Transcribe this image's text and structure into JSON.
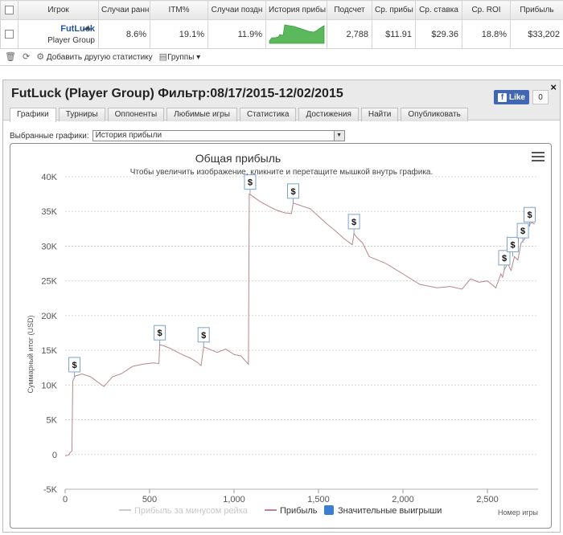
{
  "stats_table": {
    "headers": [
      "Игрок",
      "Случаи ранн",
      "ITM%",
      "Случаи поздн",
      "История прибы",
      "Подсчет",
      "Ср. прибы",
      "Ср. ставка",
      "Ср. ROI",
      "Прибыль"
    ],
    "row": {
      "player_name": "FutLuck",
      "player_group": "Player Group",
      "early": "8.6%",
      "itm": "19.1%",
      "late": "11.9%",
      "count": "2,788",
      "avg_profit": "$11.91",
      "avg_stake": "$29.36",
      "avg_roi": "18.8%",
      "profit": "$33,202"
    }
  },
  "toolbar": {
    "add_stats_label": "Добавить другую статистику",
    "groups_label": "Группы"
  },
  "report": {
    "title": "FutLuck (Player Group) Фильтр:08/17/2015-12/02/2015",
    "close_glyph": "×",
    "fb_like_label": "Like",
    "fb_like_count": "0",
    "tabs": [
      "Графики",
      "Турниры",
      "Оппоненты",
      "Любимые игры",
      "Статистика",
      "Достижения",
      "Найти",
      "Опубликовать"
    ],
    "active_tab": 0,
    "selector_label": "Выбранные графики:",
    "selector_value": "История прибыли"
  },
  "icons": {
    "trash": "trash-icon",
    "refresh": "refresh-icon",
    "add_stats": "add-stats-icon",
    "groups": "groups-icon",
    "menu": "hamburger-menu-icon",
    "player_type": "shark-icon",
    "big_win": "dollar-flag-icon"
  },
  "colors": {
    "profit_line": "#b7878a",
    "sparkline": "#4caf50",
    "rake_series": "#cccccc",
    "big_wins": "#3a7fd5",
    "player_link": "#1f56a8",
    "flag_border": "#7fa3c8"
  },
  "chart_data": {
    "type": "line",
    "title": "Общая прибыль",
    "subtitle": "Чтобы увеличить изображение, кликните и перетащите мышкой внутрь графика.",
    "xlabel": "Номер игры",
    "ylabel": "Суммарный итог (USD)",
    "xlim": [
      0,
      2800
    ],
    "ylim": [
      -5000,
      40000
    ],
    "x_ticks": [
      0,
      500,
      1000,
      1500,
      2000,
      2500
    ],
    "x_tick_labels": [
      "0",
      "500",
      "1,000",
      "1,500",
      "2,000",
      "2,500"
    ],
    "y_ticks": [
      -5000,
      0,
      5000,
      10000,
      15000,
      20000,
      25000,
      30000,
      35000,
      40000
    ],
    "y_tick_labels": [
      "-5K",
      "0",
      "5K",
      "10K",
      "15K",
      "20K",
      "25K",
      "30K",
      "35K",
      "40K"
    ],
    "grid": true,
    "legend_position": "bottom",
    "series": [
      {
        "name": "Прибыль за минусом рейка",
        "values": []
      },
      {
        "name": "Прибыль",
        "x": [
          0,
          20,
          30,
          40,
          45,
          60,
          100,
          150,
          200,
          230,
          280,
          330,
          400,
          460,
          520,
          555,
          560,
          580,
          620,
          660,
          700,
          740,
          780,
          805,
          820,
          860,
          900,
          950,
          1000,
          1040,
          1085,
          1090,
          1110,
          1150,
          1200,
          1250,
          1300,
          1340,
          1350,
          1400,
          1450,
          1500,
          1550,
          1600,
          1650,
          1700,
          1710,
          1730,
          1760,
          1800,
          1900,
          2000,
          2100,
          2200,
          2280,
          2350,
          2400,
          2450,
          2500,
          2550,
          2580,
          2590,
          2600,
          2620,
          2640,
          2660,
          2680,
          2700,
          2720,
          2740,
          2760,
          2780
        ],
        "values": [
          -200,
          -100,
          300,
          500,
          10600,
          11300,
          11600,
          11200,
          10300,
          9800,
          11200,
          11600,
          12700,
          13000,
          13200,
          13100,
          15800,
          15700,
          15300,
          14800,
          14300,
          13900,
          13300,
          12800,
          15500,
          15100,
          14700,
          15200,
          14400,
          14200,
          13000,
          37500,
          37200,
          36500,
          35800,
          35200,
          34800,
          34700,
          36200,
          35800,
          35400,
          34300,
          33200,
          32200,
          31100,
          30200,
          31800,
          31200,
          30500,
          28500,
          27500,
          26000,
          24500,
          24000,
          24200,
          23800,
          25300,
          24800,
          25000,
          24000,
          26000,
          25500,
          26600,
          27500,
          26500,
          28500,
          28000,
          30500,
          31000,
          32800,
          33400,
          33200
        ]
      },
      {
        "name": "Значительные выигрыши",
        "values": []
      }
    ],
    "big_win_markers": [
      {
        "x": 55,
        "y": 11200,
        "label": "$"
      },
      {
        "x": 560,
        "y": 15800,
        "label": "$"
      },
      {
        "x": 820,
        "y": 15500,
        "label": "$"
      },
      {
        "x": 1095,
        "y": 37500,
        "label": "$"
      },
      {
        "x": 1350,
        "y": 36200,
        "label": "$"
      },
      {
        "x": 1710,
        "y": 31800,
        "label": "$"
      },
      {
        "x": 2600,
        "y": 26600,
        "label": "$"
      },
      {
        "x": 2650,
        "y": 28500,
        "label": "$"
      },
      {
        "x": 2710,
        "y": 30500,
        "label": "$"
      },
      {
        "x": 2750,
        "y": 32800,
        "label": "$"
      }
    ]
  }
}
